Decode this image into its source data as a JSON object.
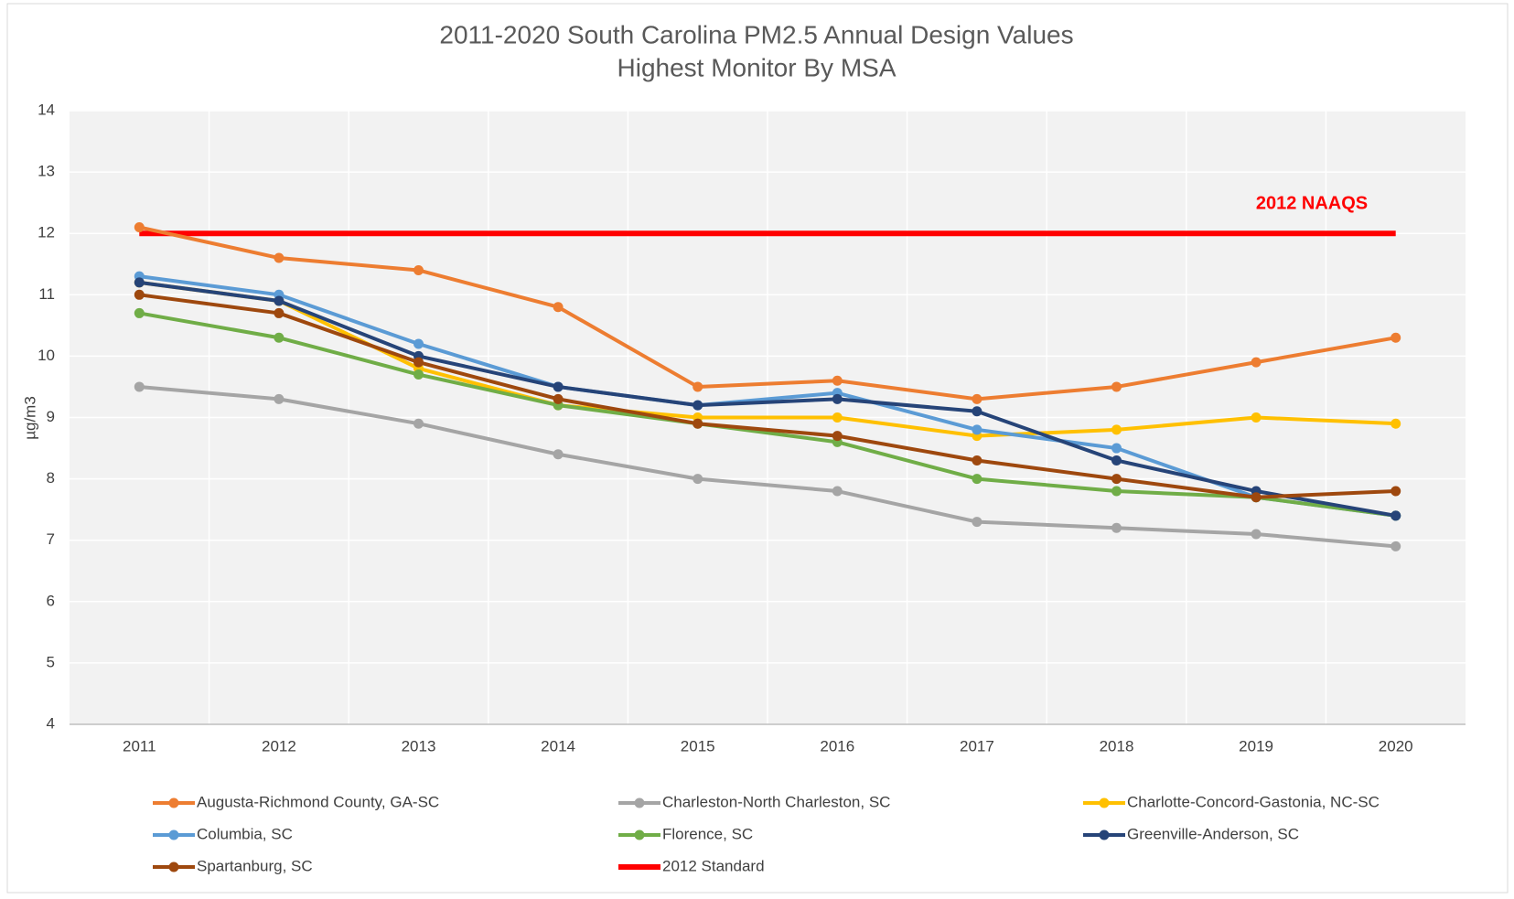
{
  "chart_data": {
    "type": "line",
    "title": "2011-2020 South Carolina PM2.5 Annual Design Values",
    "subtitle": "Highest Monitor By MSA",
    "y_label": "µg/m3",
    "annotation": "2012 NAAQS",
    "categories": [
      "2011",
      "2012",
      "2013",
      "2014",
      "2015",
      "2016",
      "2017",
      "2018",
      "2019",
      "2020"
    ],
    "series": [
      {
        "name": "Augusta-Richmond County, GA-SC",
        "color": "#ed7d31",
        "markers": true,
        "values": [
          12.1,
          11.6,
          11.4,
          10.8,
          9.5,
          9.6,
          9.3,
          9.5,
          9.9,
          10.3
        ]
      },
      {
        "name": "Charleston-North Charleston, SC",
        "color": "#a5a5a5",
        "markers": true,
        "values": [
          9.5,
          9.3,
          8.9,
          8.4,
          8.0,
          7.8,
          7.3,
          7.2,
          7.1,
          6.9
        ]
      },
      {
        "name": "Charlotte-Concord-Gastonia, NC-SC",
        "color": "#ffc000",
        "markers": true,
        "values": [
          11.2,
          10.9,
          9.8,
          9.2,
          9.0,
          9.0,
          8.7,
          8.8,
          9.0,
          8.9
        ]
      },
      {
        "name": "Columbia, SC",
        "color": "#5b9bd5",
        "markers": true,
        "values": [
          11.3,
          11.0,
          10.2,
          9.5,
          9.2,
          9.4,
          8.8,
          8.5,
          7.7,
          7.4
        ]
      },
      {
        "name": "Florence, SC",
        "color": "#70ad47",
        "markers": true,
        "values": [
          10.7,
          10.3,
          9.7,
          9.2,
          8.9,
          8.6,
          8.0,
          7.8,
          7.7,
          7.4
        ]
      },
      {
        "name": "Greenville-Anderson, SC",
        "color": "#264478",
        "markers": true,
        "values": [
          11.2,
          10.9,
          10.0,
          9.5,
          9.2,
          9.3,
          9.1,
          8.3,
          7.8,
          7.4
        ]
      },
      {
        "name": "Spartanburg, SC",
        "color": "#9e480e",
        "markers": true,
        "values": [
          11.0,
          10.7,
          9.9,
          9.3,
          8.9,
          8.7,
          8.3,
          8.0,
          7.7,
          7.8
        ]
      },
      {
        "name": "2012 Standard",
        "color": "#ff0000",
        "markers": false,
        "values": [
          12,
          12,
          12,
          12,
          12,
          12,
          12,
          12,
          12,
          12
        ]
      }
    ],
    "ylim": [
      4,
      14
    ],
    "yticks": [
      4,
      5,
      6,
      7,
      8,
      9,
      10,
      11,
      12,
      13,
      14
    ],
    "grid": true
  }
}
